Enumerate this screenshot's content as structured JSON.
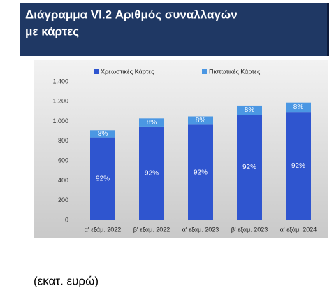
{
  "header": {
    "title_line1": "Διάγραμμα VI.2 Αριθμός συναλλαγών",
    "title_line2": "με κάρτες"
  },
  "chart_data": {
    "type": "stacked_bar",
    "categories": [
      "α' εξάμ. 2022",
      "β' εξάμ. 2022",
      "α' εξάμ. 2023",
      "β' εξάμ. 2023",
      "α' εξάμ. 2024"
    ],
    "series": [
      {
        "name": "Χρεωστικές Κάρτες",
        "color": "#2f55cf",
        "values": [
          837,
          948,
          966,
          1067,
          1095
        ],
        "share_labels": [
          "92%",
          "92%",
          "92%",
          "92%",
          "92%"
        ]
      },
      {
        "name": "Πιστωτικές Κάρτες",
        "color": "#4b97e3",
        "values": [
          73,
          82,
          84,
          93,
          95
        ],
        "share_labels": [
          "8%",
          "8%",
          "8%",
          "8%",
          "8%"
        ]
      }
    ],
    "ylim": [
      0,
      1400
    ],
    "yticks": [
      0,
      200,
      400,
      600,
      800,
      {
        "value": 1000,
        "label": "1.000"
      },
      {
        "value": 1200,
        "label": "1.200"
      },
      {
        "value": 1400,
        "label": "1.400"
      }
    ],
    "legend": "top"
  },
  "footnote": "(εκατ. ευρώ)"
}
